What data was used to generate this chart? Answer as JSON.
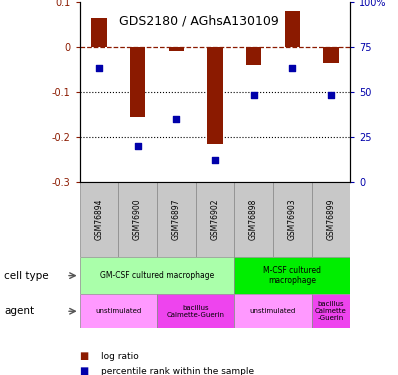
{
  "title": "GDS2180 / AGhsA130109",
  "samples": [
    "GSM76894",
    "GSM76900",
    "GSM76897",
    "GSM76902",
    "GSM76898",
    "GSM76903",
    "GSM76899"
  ],
  "log_ratio": [
    0.065,
    -0.155,
    -0.01,
    -0.215,
    -0.04,
    0.08,
    -0.035
  ],
  "percentile_rank_pct": [
    63,
    20,
    35,
    12,
    48,
    63,
    48
  ],
  "bar_color": "#8B1A00",
  "dot_color": "#0000AA",
  "left_ylim": [
    -0.3,
    0.1
  ],
  "right_ylim": [
    0,
    100
  ],
  "left_yticks": [
    0.1,
    0.0,
    -0.1,
    -0.2,
    -0.3
  ],
  "right_yticks": [
    100,
    75,
    50,
    25,
    0
  ],
  "cell_type_row": {
    "groups": [
      {
        "label": "GM-CSF cultured macrophage",
        "start": 0,
        "end": 4,
        "color": "#AAFFAA"
      },
      {
        "label": "M-CSF cultured\nmacrophage",
        "start": 4,
        "end": 7,
        "color": "#00EE00"
      }
    ]
  },
  "agent_row": {
    "groups": [
      {
        "label": "unstimulated",
        "start": 0,
        "end": 2,
        "color": "#FF99FF"
      },
      {
        "label": "bacillus\nCalmette-Guerin",
        "start": 2,
        "end": 4,
        "color": "#EE44EE"
      },
      {
        "label": "unstimulated",
        "start": 4,
        "end": 6,
        "color": "#FF99FF"
      },
      {
        "label": "bacillus\nCalmette\n-Guerin",
        "start": 6,
        "end": 7,
        "color": "#EE44EE"
      }
    ]
  },
  "legend_items": [
    {
      "color": "#8B1A00",
      "label": "log ratio"
    },
    {
      "color": "#0000AA",
      "label": "percentile rank within the sample"
    }
  ]
}
